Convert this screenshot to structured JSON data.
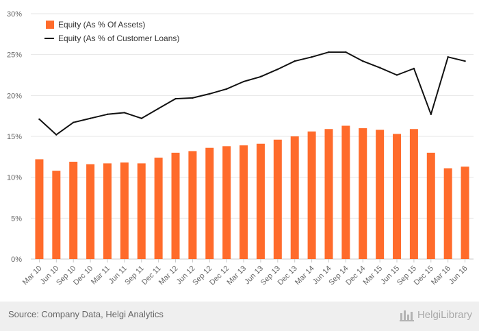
{
  "chart_data": {
    "type": "bar+line",
    "categories": [
      "Mar 10",
      "Jun 10",
      "Sep 10",
      "Dec 10",
      "Mar 11",
      "Jun 11",
      "Sep 11",
      "Dec 11",
      "Mar 12",
      "Jun 12",
      "Sep 12",
      "Dec 12",
      "Mar 13",
      "Jun 13",
      "Sep 13",
      "Dec 13",
      "Mar 14",
      "Jun 14",
      "Sep 14",
      "Dec 14",
      "Mar 15",
      "Jun 15",
      "Sep 15",
      "Dec 15",
      "Mar 16",
      "Jun 16"
    ],
    "series": [
      {
        "name": "Equity (As % Of Assets)",
        "type": "bar",
        "color": "#ff6b2b",
        "values": [
          12.2,
          10.8,
          11.9,
          11.6,
          11.7,
          11.8,
          11.7,
          12.4,
          13.0,
          13.2,
          13.6,
          13.8,
          13.9,
          14.1,
          14.6,
          15.0,
          15.6,
          15.9,
          16.3,
          16.0,
          15.8,
          15.3,
          15.9,
          13.0,
          11.1,
          11.3
        ]
      },
      {
        "name": "Equity (As % of Customer Loans)",
        "type": "line",
        "color": "#111111",
        "values": [
          17.1,
          15.2,
          16.7,
          17.2,
          17.7,
          17.9,
          17.2,
          18.4,
          19.6,
          19.7,
          20.2,
          20.8,
          21.7,
          22.3,
          23.2,
          24.2,
          24.7,
          25.3,
          25.3,
          24.2,
          23.4,
          22.5,
          23.3,
          17.7,
          24.7,
          24.2
        ]
      }
    ],
    "y_ticks": [
      "0%",
      "5%",
      "10%",
      "15%",
      "20%",
      "25%",
      "30%"
    ],
    "ylim": [
      0,
      30
    ],
    "grid": true,
    "legend": "top-left",
    "xlabel": "",
    "ylabel": ""
  },
  "footer": {
    "source": "Source: Company Data, Helgi Analytics",
    "brand": "HelgiLibrary"
  }
}
